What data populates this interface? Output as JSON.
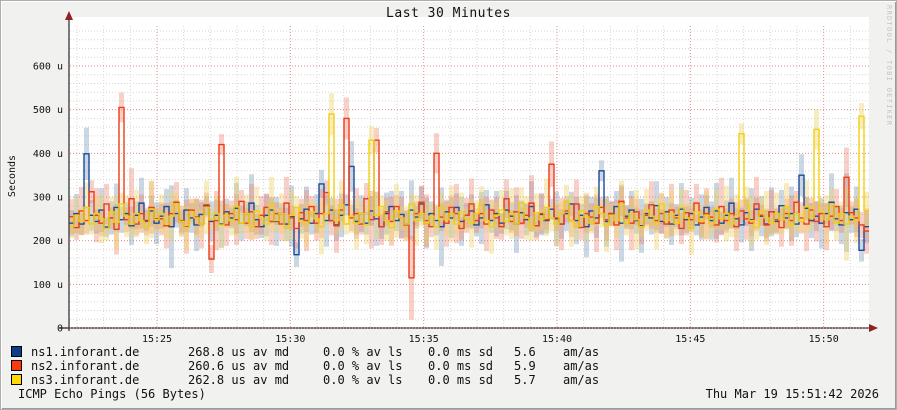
{
  "title": "Last 30 Minutes",
  "y_axis_label": "Seconds",
  "watermark": "RRDTOOL / TOBI OETIKER",
  "footer": {
    "left": "ICMP Echo Pings (56 Bytes)",
    "right": "Thu Mar 19 15:51:42 2026"
  },
  "legend": {
    "rows": [
      {
        "color": "#0e3d8a",
        "name": "ns1.inforant.de",
        "av_md": "268.8 us av md",
        "av_ls": "0.0 % av ls",
        "sd": "0.0 ms sd",
        "amas": "5.6",
        "amas_unit": "am/as"
      },
      {
        "color": "#f93a10",
        "name": "ns2.inforant.de",
        "av_md": "260.6 us av md",
        "av_ls": "0.0 % av ls",
        "sd": "0.0 ms sd",
        "amas": "5.9",
        "amas_unit": "am/as"
      },
      {
        "color": "#ffd90a",
        "name": "ns3.inforant.de",
        "av_md": "262.8 us av md",
        "av_ls": "0.0 % av ls",
        "sd": "0.0 ms sd",
        "amas": "5.7",
        "amas_unit": "am/as"
      }
    ]
  },
  "chart_data": {
    "type": "line",
    "title": "Last 30 Minutes",
    "ylabel": "Seconds",
    "ylim": [
      0,
      690
    ],
    "y_unit": "microseconds",
    "x_window_minutes": 30,
    "x_start_min": 21.7,
    "x_end_min": 51.7,
    "grid": {
      "minor_step_u": 20,
      "major_step_u": 100,
      "minor_step_min": 1,
      "major_step_min": 5,
      "style": "dotted"
    },
    "y_ticks": [
      {
        "v": 0,
        "label": "0"
      },
      {
        "v": 100,
        "label": "100 u"
      },
      {
        "v": 200,
        "label": "200 u"
      },
      {
        "v": 300,
        "label": "300 u"
      },
      {
        "v": 400,
        "label": "400 u"
      },
      {
        "v": 500,
        "label": "500 u"
      },
      {
        "v": 600,
        "label": "600 u"
      }
    ],
    "x_ticks": [
      {
        "min": 25,
        "label": "15:25"
      },
      {
        "min": 30,
        "label": "15:30"
      },
      {
        "min": 35,
        "label": "15:35"
      },
      {
        "min": 40,
        "label": "15:40"
      },
      {
        "min": 45,
        "label": "15:45"
      },
      {
        "min": 50,
        "label": "15:50"
      }
    ],
    "series": [
      {
        "name": "ns1.inforant.de",
        "color": "#1b4a9b",
        "band_color": "rgba(125,155,185,0.40)",
        "avg_us": 268.8,
        "values": [
          240,
          262,
          238,
          399,
          258,
          244,
          270,
          231,
          252,
          276,
          248,
          262,
          234,
          258,
          286,
          246,
          268,
          240,
          256,
          278,
          232,
          262,
          244,
          270,
          252,
          236,
          260,
          280,
          244,
          258,
          238,
          266,
          252,
          274,
          240,
          262,
          286,
          248,
          232,
          258,
          270,
          244,
          262,
          238,
          256,
          168,
          250,
          272,
          240,
          262,
          330,
          246,
          270,
          236,
          258,
          282,
          370,
          244,
          262,
          240,
          268,
          250,
          232,
          262,
          278,
          246,
          260,
          238,
          270,
          254,
          284,
          240,
          262,
          246,
          232,
          266,
          252,
          276,
          244,
          258,
          268,
          236,
          252,
          282,
          246,
          262,
          240,
          270,
          256,
          238,
          264,
          248,
          278,
          234,
          260,
          246,
          272,
          250,
          238,
          262,
          284,
          246,
          258,
          232,
          268,
          252,
          360,
          244,
          262,
          278,
          240,
          256,
          270,
          246,
          234,
          262,
          252,
          280,
          244,
          266,
          238,
          258,
          272,
          248,
          262,
          236,
          254,
          276,
          246,
          268,
          240,
          258,
          286,
          250,
          236,
          264,
          248,
          272,
          256,
          238,
          266,
          244,
          280,
          252,
          262,
          238,
          350,
          274,
          246,
          256,
          240,
          262,
          288,
          250,
          236,
          264,
          248,
          272,
          178,
          232
        ],
        "band": [
          30,
          45,
          25,
          60,
          35,
          28,
          50,
          22,
          38,
          55,
          30,
          26,
          44,
          32,
          58,
          24,
          36,
          48,
          28,
          40,
          95,
          32,
          26,
          50,
          34,
          60,
          28,
          22,
          46,
          36,
          54,
          30,
          24,
          58,
          40,
          28,
          66,
          34,
          26,
          48,
          30,
          56,
          24,
          38,
          70,
          28,
          34,
          52,
          26,
          44,
          32,
          60,
          28,
          36,
          50,
          24,
          58,
          30,
          42,
          26,
          34,
          62,
          28,
          48,
          36,
          24,
          54,
          30,
          68,
          26,
          40,
          58,
          28,
          34,
          90,
          24,
          46,
          32,
          56,
          28,
          38,
          26,
          60,
          34,
          28,
          52,
          24,
          44,
          32,
          66,
          28,
          36,
          58,
          26,
          48,
          30,
          24,
          62,
          34,
          40,
          28,
          54,
          26,
          70,
          32,
          46,
          24,
          58,
          28,
          36,
          88,
          26,
          44,
          30,
          62,
          24,
          38,
          56,
          28,
          34,
          48,
          26,
          60,
          30,
          36,
          24,
          52,
          28,
          44,
          64,
          26,
          34,
          58,
          24,
          40,
          30,
          72,
          26,
          46,
          32,
          56,
          28,
          36,
          24,
          62,
          30,
          48,
          26,
          40,
          34,
          58,
          24,
          66,
          28,
          44,
          90,
          30,
          52,
          26,
          38
        ]
      },
      {
        "name": "ns2.inforant.de",
        "color": "#ee3c18",
        "band_color": "rgba(238,120,95,0.35)",
        "avg_us": 260.6,
        "values": [
          255,
          230,
          268,
          246,
          312,
          258,
          240,
          284,
          252,
          226,
          505,
          248,
          296,
          238,
          262,
          244,
          276,
          250,
          250,
          234,
          262,
          288,
          246,
          232,
          270,
          254,
          238,
          282,
          158,
          246,
          420,
          236,
          262,
          248,
          290,
          240,
          266,
          232,
          258,
          276,
          244,
          262,
          238,
          286,
          252,
          228,
          264,
          246,
          278,
          240,
          262,
          310,
          246,
          234,
          270,
          480,
          252,
          262,
          238,
          296,
          248,
          430,
          232,
          266,
          244,
          278,
          252,
          236,
          115,
          262,
          288,
          246,
          232,
          400,
          254,
          240,
          276,
          262,
          228,
          258,
          284,
          246,
          262,
          238,
          270,
          252,
          232,
          296,
          244,
          266,
          240,
          258,
          286,
          234,
          262,
          248,
          375,
          252,
          238,
          268,
          246,
          284,
          230,
          262,
          254,
          240,
          276,
          248,
          262,
          236,
          290,
          252,
          240,
          266,
          232,
          258,
          282,
          246,
          262,
          238,
          270,
          252,
          228,
          264,
          248,
          286,
          240,
          262,
          254,
          236,
          278,
          246,
          262,
          232,
          268,
          250,
          240,
          284,
          258,
          236,
          266,
          248,
          230,
          262,
          246,
          288,
          252,
          238,
          270,
          244,
          262,
          232,
          256,
          278,
          246,
          345,
          264,
          252,
          236,
          222
        ],
        "band": [
          40,
          28,
          55,
          32,
          26,
          62,
          30,
          46,
          24,
          58,
          34,
          28,
          70,
          26,
          44,
          32,
          60,
          24,
          38,
          52,
          28,
          46,
          34,
          62,
          26,
          40,
          56,
          28,
          32,
          68,
          24,
          48,
          30,
          58,
          26,
          36,
          64,
          28,
          44,
          32,
          54,
          26,
          38,
          60,
          28,
          46,
          32,
          70,
          24,
          40,
          56,
          28,
          34,
          62,
          26,
          48,
          30,
          58,
          24,
          36,
          66,
          28,
          42,
          32,
          56,
          26,
          48,
          34,
          96,
          28,
          38,
          60,
          24,
          46,
          32,
          54,
          28,
          68,
          26,
          40,
          58,
          28,
          34,
          62,
          24,
          48,
          30,
          44,
          26,
          56,
          36,
          28,
          64,
          32,
          46,
          24,
          52,
          30,
          60,
          26,
          38,
          56,
          28,
          44,
          32,
          66,
          24,
          48,
          28,
          58,
          34,
          26,
          62,
          30,
          40,
          24,
          54,
          28,
          46,
          32,
          60,
          26,
          36,
          52,
          28,
          44,
          32,
          58,
          24,
          40,
          66,
          28,
          34,
          56,
          26,
          48,
          30,
          62,
          24,
          38,
          50,
          28,
          44,
          34,
          58,
          26,
          36,
          62,
          28,
          46,
          24,
          54,
          32,
          40,
          28,
          68,
          26,
          44,
          30,
          52
        ]
      },
      {
        "name": "ns3.inforant.de",
        "color": "#f2cf0e",
        "band_color": "rgba(238,210,100,0.40)",
        "avg_us": 262.8,
        "values": [
          232,
          258,
          244,
          276,
          238,
          262,
          250,
          228,
          266,
          242,
          284,
          256,
          238,
          262,
          246,
          230,
          272,
          248,
          262,
          238,
          256,
          284,
          244,
          230,
          266,
          252,
          238,
          276,
          248,
          262,
          236,
          258,
          246,
          278,
          240,
          262,
          232,
          268,
          252,
          238,
          284,
          246,
          262,
          230,
          258,
          276,
          244,
          238,
          266,
          250,
          232,
          262,
          490,
          246,
          282,
          238,
          256,
          240,
          262,
          236,
          430,
          258,
          278,
          246,
          230,
          268,
          252,
          238,
          284,
          246,
          262,
          240,
          256,
          232,
          276,
          248,
          262,
          238,
          266,
          250,
          240,
          262,
          284,
          246,
          232,
          258,
          270,
          244,
          262,
          238,
          286,
          252,
          228,
          264,
          248,
          276,
          252,
          238,
          262,
          290,
          246,
          232,
          268,
          254,
          240,
          278,
          262,
          236,
          258,
          246,
          284,
          240,
          262,
          248,
          232,
          270,
          256,
          238,
          284,
          246,
          262,
          240,
          276,
          252,
          228,
          266,
          244,
          258,
          238,
          272,
          250,
          262,
          238,
          256,
          445,
          284,
          246,
          230,
          268,
          252,
          240,
          262,
          248,
          278,
          236,
          262,
          244,
          278,
          252,
          455,
          266,
          248,
          284,
          240,
          262,
          238,
          256,
          246,
          485,
          268
        ],
        "band": [
          26,
          44,
          32,
          58,
          24,
          40,
          56,
          28,
          34,
          62,
          26,
          48,
          30,
          54,
          24,
          38,
          66,
          28,
          44,
          32,
          58,
          26,
          36,
          50,
          28,
          46,
          32,
          62,
          24,
          40,
          54,
          28,
          34,
          68,
          26,
          44,
          30,
          56,
          24,
          38,
          62,
          28,
          46,
          32,
          58,
          26,
          40,
          52,
          28,
          34,
          64,
          26,
          48,
          30,
          56,
          24,
          38,
          60,
          28,
          44,
          32,
          54,
          26,
          46,
          34,
          62,
          28,
          40,
          24,
          58,
          30,
          48,
          26,
          52,
          32,
          38,
          64,
          28,
          44,
          26,
          56,
          30,
          40,
          24,
          62,
          28,
          46,
          32,
          58,
          26,
          36,
          50,
          28,
          44,
          24,
          66,
          30,
          52,
          26,
          38,
          60,
          28,
          34,
          56,
          24,
          46,
          32,
          62,
          26,
          40,
          54,
          28,
          36,
          68,
          24,
          48,
          30,
          58,
          26,
          42,
          52,
          28,
          44,
          32,
          60,
          24,
          38,
          56,
          28,
          46,
          26,
          64,
          30,
          50,
          24,
          40,
          58,
          28,
          34,
          62,
          26,
          48,
          32,
          54,
          28,
          44,
          24,
          60,
          30,
          46,
          26,
          56,
          34,
          40,
          28,
          84,
          24,
          52,
          30,
          44
        ]
      }
    ]
  }
}
